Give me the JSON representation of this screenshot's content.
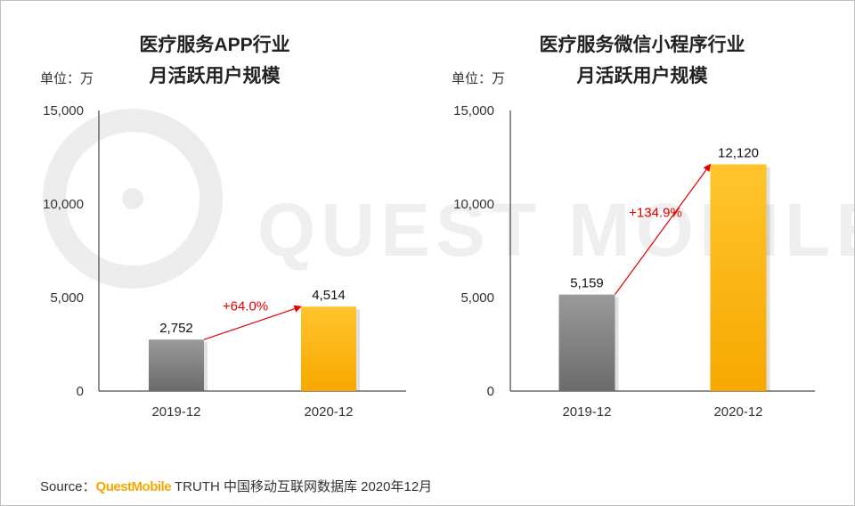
{
  "source": {
    "prefix": "Source：",
    "brand": "QuestMobile",
    "rest": "TRUTH 中国移动互联网数据库 2020年12月"
  },
  "watermark": {
    "text": "QUEST MOBILE"
  },
  "colors": {
    "gray_top": "#9a9a9a",
    "gray_bottom": "#6b6b6b",
    "gold_top": "#ffc52e",
    "gold_bottom": "#f7a800",
    "growth": "#e00000"
  },
  "chart_data": [
    {
      "type": "bar",
      "title_lines": [
        "医疗服务APP行业",
        "月活跃用户规模"
      ],
      "unit_label": "单位：万",
      "categories": [
        "2019-12",
        "2020-12"
      ],
      "values": [
        2752,
        4514
      ],
      "value_labels": [
        "2,752",
        "4,514"
      ],
      "yticks": [
        0,
        5000,
        10000,
        15000
      ],
      "ytick_labels": [
        "0",
        "5,000",
        "10,000",
        "15,000"
      ],
      "ylim": [
        0,
        15000
      ],
      "growth_label": "+64.0%"
    },
    {
      "type": "bar",
      "title_lines": [
        "医疗服务微信小程序行业",
        "月活跃用户规模"
      ],
      "unit_label": "单位：万",
      "categories": [
        "2019-12",
        "2020-12"
      ],
      "values": [
        5159,
        12120
      ],
      "value_labels": [
        "5,159",
        "12,120"
      ],
      "yticks": [
        0,
        5000,
        10000,
        15000
      ],
      "ytick_labels": [
        "0",
        "5,000",
        "10,000",
        "15,000"
      ],
      "ylim": [
        0,
        15000
      ],
      "growth_label": "+134.9%"
    }
  ]
}
